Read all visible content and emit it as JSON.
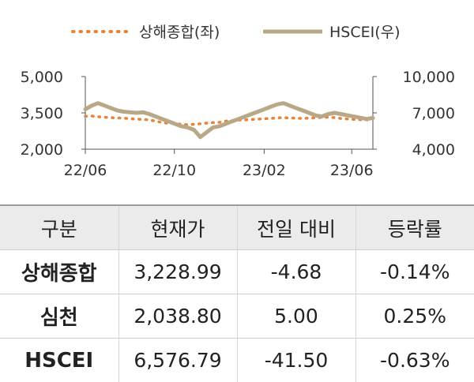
{
  "chart_data": {
    "type": "line",
    "legend": {
      "placement": "top"
    },
    "series": [
      {
        "name": "상해종합(좌)",
        "axis": "left",
        "style": "dotted",
        "color": "#e8833a",
        "values": [
          3360,
          3370,
          3340,
          3320,
          3300,
          3290,
          3280,
          3260,
          3240,
          3230,
          3210,
          3160,
          3100,
          3070,
          3060,
          3030,
          3010,
          3030,
          3050,
          3080,
          3100,
          3110,
          3160,
          3180,
          3200,
          3210,
          3230,
          3240,
          3260,
          3270,
          3290,
          3300,
          3290,
          3280,
          3270,
          3280,
          3300,
          3310,
          3320,
          3300,
          3270,
          3250,
          3230,
          3220,
          3210,
          3229
        ]
      },
      {
        "name": "HSCEI(우)",
        "axis": "right",
        "style": "solid",
        "color": "#b8a888",
        "values": [
          7300,
          7600,
          7800,
          7600,
          7400,
          7200,
          7100,
          7050,
          7000,
          7050,
          6900,
          6700,
          6500,
          6300,
          6100,
          5900,
          5800,
          5600,
          5000,
          5400,
          5800,
          5900,
          6100,
          6300,
          6500,
          6700,
          6900,
          7100,
          7300,
          7500,
          7700,
          7800,
          7600,
          7400,
          7200,
          7000,
          6800,
          6700,
          6900,
          7000,
          6900,
          6800,
          6700,
          6600,
          6500,
          6577
        ]
      }
    ],
    "x_range": [
      "2022-06-01",
      "2023-06-30"
    ],
    "x_tick_labels": [
      "22/06",
      "22/10",
      "23/02",
      "23/06"
    ],
    "x_tick_dates": [
      "2022-06-01",
      "2022-10-01",
      "2023-02-01",
      "2023-06-01"
    ],
    "y_left": {
      "range": [
        2000,
        5000
      ],
      "ticks": [
        2000,
        3500,
        5000
      ],
      "tick_labels": [
        "2,000",
        "3,500",
        "5,000"
      ]
    },
    "y_right": {
      "range": [
        4000,
        10000
      ],
      "ticks": [
        4000,
        7000,
        10000
      ],
      "tick_labels": [
        "4,000",
        "7,000",
        "10,000"
      ]
    },
    "grid": false
  },
  "table": {
    "headers": [
      "구분",
      "현재가",
      "전일 대비",
      "등락률"
    ],
    "rows": [
      {
        "name": "상해종합",
        "price": "3,228.99",
        "change": "-4.68",
        "rate": "-0.14%"
      },
      {
        "name": "심천",
        "price": "2,038.80",
        "change": "5.00",
        "rate": "0.25%"
      },
      {
        "name": "HSCEI",
        "price": "6,576.79",
        "change": "-41.50",
        "rate": "-0.63%"
      }
    ]
  }
}
